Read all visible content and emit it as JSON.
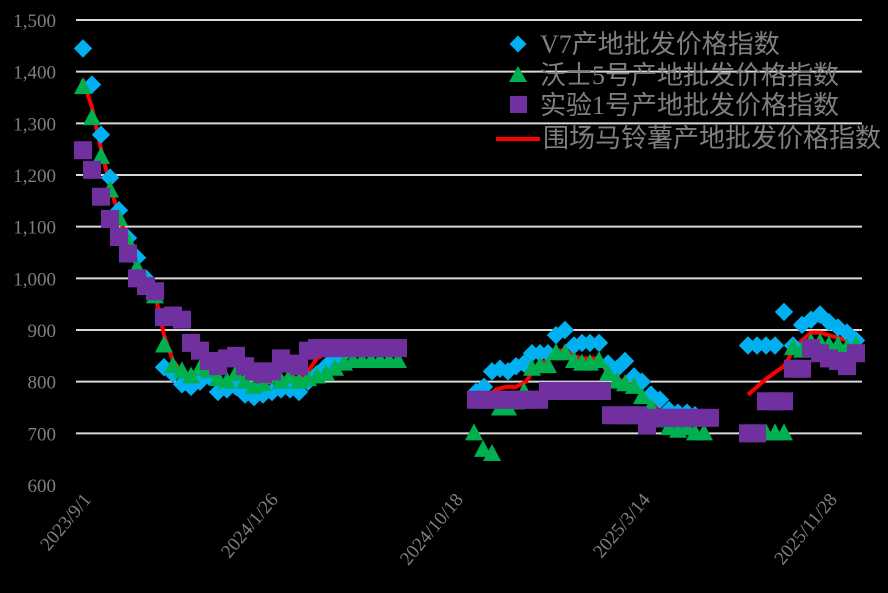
{
  "chart_data": {
    "type": "scatter",
    "title": "",
    "xlabel": "",
    "ylabel": "",
    "ylim": [
      600,
      1500
    ],
    "y_ticks": [
      "1,500",
      "1,400",
      "1,300",
      "1,200",
      "1,100",
      "1,000",
      "900",
      "800",
      "700",
      "600"
    ],
    "x_tick_labels": [
      "2023/9/1",
      "2024/1/26",
      "2024/10/18",
      "2025/3/14",
      "2025/11/28"
    ],
    "grid": true,
    "legend_position": "top-right",
    "background": "#000000",
    "series": [
      {
        "name": "V7产地批发价格指数",
        "marker": "diamond",
        "color": "#00b0f0",
        "points": [
          [
            83,
            1445
          ],
          [
            92,
            1375
          ],
          [
            101,
            1278
          ],
          [
            110,
            1195
          ],
          [
            119,
            1132
          ],
          [
            128,
            1078
          ],
          [
            137,
            1040
          ],
          [
            146,
            1000
          ],
          [
            155,
            970
          ],
          [
            164,
            828
          ],
          [
            173,
            815
          ],
          [
            182,
            795
          ],
          [
            191,
            790
          ],
          [
            200,
            800
          ],
          [
            209,
            810
          ],
          [
            218,
            780
          ],
          [
            227,
            785
          ],
          [
            236,
            790
          ],
          [
            245,
            775
          ],
          [
            254,
            770
          ],
          [
            263,
            775
          ],
          [
            272,
            780
          ],
          [
            281,
            785
          ],
          [
            290,
            785
          ],
          [
            299,
            780
          ],
          [
            308,
            800
          ],
          [
            317,
            815
          ],
          [
            326,
            830
          ],
          [
            335,
            845
          ],
          [
            344,
            855
          ],
          [
            353,
            860
          ],
          [
            362,
            865
          ],
          [
            371,
            865
          ],
          [
            380,
            865
          ],
          [
            389,
            865
          ],
          [
            398,
            865
          ],
          [
            476,
            780
          ],
          [
            484,
            790
          ],
          [
            492,
            820
          ],
          [
            500,
            825
          ],
          [
            508,
            820
          ],
          [
            516,
            830
          ],
          [
            524,
            835
          ],
          [
            532,
            855
          ],
          [
            540,
            855
          ],
          [
            548,
            855
          ],
          [
            556,
            890
          ],
          [
            565,
            900
          ],
          [
            574,
            870
          ],
          [
            582,
            875
          ],
          [
            590,
            875
          ],
          [
            599,
            875
          ],
          [
            608,
            835
          ],
          [
            617,
            825
          ],
          [
            625,
            840
          ],
          [
            634,
            810
          ],
          [
            642,
            800
          ],
          [
            651,
            775
          ],
          [
            660,
            765
          ],
          [
            669,
            745
          ],
          [
            678,
            740
          ],
          [
            687,
            740
          ],
          [
            695,
            735
          ],
          [
            704,
            730
          ],
          [
            748,
            870
          ],
          [
            757,
            870
          ],
          [
            766,
            870
          ],
          [
            775,
            870
          ],
          [
            784,
            935
          ],
          [
            793,
            870
          ],
          [
            802,
            910
          ],
          [
            811,
            920
          ],
          [
            820,
            930
          ],
          [
            829,
            915
          ],
          [
            838,
            905
          ],
          [
            847,
            895
          ],
          [
            856,
            880
          ]
        ]
      },
      {
        "name": "沃士5号产地批发价格指数",
        "marker": "triangle",
        "color": "#00b050",
        "points": [
          [
            83,
            1370
          ],
          [
            92,
            1310
          ],
          [
            101,
            1235
          ],
          [
            110,
            1170
          ],
          [
            119,
            1115
          ],
          [
            128,
            1070
          ],
          [
            137,
            1020
          ],
          [
            146,
            990
          ],
          [
            155,
            965
          ],
          [
            164,
            870
          ],
          [
            173,
            830
          ],
          [
            182,
            820
          ],
          [
            191,
            810
          ],
          [
            200,
            825
          ],
          [
            209,
            820
          ],
          [
            218,
            805
          ],
          [
            227,
            800
          ],
          [
            236,
            815
          ],
          [
            245,
            800
          ],
          [
            254,
            790
          ],
          [
            263,
            795
          ],
          [
            272,
            810
          ],
          [
            281,
            800
          ],
          [
            290,
            810
          ],
          [
            299,
            800
          ],
          [
            308,
            805
          ],
          [
            317,
            810
          ],
          [
            326,
            815
          ],
          [
            335,
            825
          ],
          [
            344,
            835
          ],
          [
            353,
            840
          ],
          [
            362,
            840
          ],
          [
            371,
            840
          ],
          [
            380,
            840
          ],
          [
            389,
            840
          ],
          [
            398,
            840
          ],
          [
            474,
            700
          ],
          [
            483,
            668
          ],
          [
            492,
            660
          ],
          [
            500,
            748
          ],
          [
            508,
            748
          ],
          [
            516,
            760
          ],
          [
            524,
            780
          ],
          [
            532,
            825
          ],
          [
            540,
            830
          ],
          [
            548,
            830
          ],
          [
            556,
            855
          ],
          [
            565,
            855
          ],
          [
            574,
            840
          ],
          [
            582,
            835
          ],
          [
            590,
            835
          ],
          [
            599,
            840
          ],
          [
            608,
            815
          ],
          [
            617,
            800
          ],
          [
            625,
            795
          ],
          [
            634,
            790
          ],
          [
            642,
            770
          ],
          [
            651,
            750
          ],
          [
            660,
            725
          ],
          [
            669,
            710
          ],
          [
            678,
            705
          ],
          [
            687,
            710
          ],
          [
            695,
            700
          ],
          [
            704,
            700
          ],
          [
            748,
            700
          ],
          [
            757,
            700
          ],
          [
            766,
            700
          ],
          [
            775,
            700
          ],
          [
            784,
            700
          ],
          [
            793,
            865
          ],
          [
            802,
            860
          ],
          [
            811,
            875
          ],
          [
            820,
            875
          ],
          [
            829,
            870
          ],
          [
            838,
            870
          ],
          [
            847,
            865
          ],
          [
            856,
            870
          ]
        ]
      },
      {
        "name": "实验1号产地批发价格指数",
        "marker": "square",
        "color": "#7030a0",
        "points": [
          [
            83,
            1248
          ],
          [
            92,
            1210
          ],
          [
            101,
            1158
          ],
          [
            110,
            1115
          ],
          [
            119,
            1080
          ],
          [
            128,
            1048
          ],
          [
            137,
            1000
          ],
          [
            146,
            985
          ],
          [
            155,
            975
          ],
          [
            164,
            925
          ],
          [
            173,
            928
          ],
          [
            182,
            920
          ],
          [
            191,
            875
          ],
          [
            200,
            860
          ],
          [
            209,
            840
          ],
          [
            218,
            830
          ],
          [
            227,
            845
          ],
          [
            236,
            850
          ],
          [
            245,
            830
          ],
          [
            254,
            820
          ],
          [
            263,
            815
          ],
          [
            272,
            820
          ],
          [
            281,
            845
          ],
          [
            290,
            835
          ],
          [
            299,
            830
          ],
          [
            308,
            860
          ],
          [
            317,
            865
          ],
          [
            326,
            865
          ],
          [
            335,
            865
          ],
          [
            344,
            865
          ],
          [
            353,
            865
          ],
          [
            362,
            865
          ],
          [
            371,
            865
          ],
          [
            380,
            865
          ],
          [
            389,
            865
          ],
          [
            398,
            865
          ],
          [
            476,
            765
          ],
          [
            485,
            765
          ],
          [
            494,
            765
          ],
          [
            503,
            765
          ],
          [
            512,
            765
          ],
          [
            521,
            765
          ],
          [
            530,
            765
          ],
          [
            539,
            765
          ],
          [
            548,
            782
          ],
          [
            557,
            782
          ],
          [
            566,
            782
          ],
          [
            575,
            782
          ],
          [
            584,
            782
          ],
          [
            593,
            782
          ],
          [
            602,
            782
          ],
          [
            611,
            735
          ],
          [
            620,
            735
          ],
          [
            629,
            735
          ],
          [
            638,
            735
          ],
          [
            647,
            715
          ],
          [
            656,
            730
          ],
          [
            665,
            730
          ],
          [
            674,
            730
          ],
          [
            683,
            730
          ],
          [
            692,
            730
          ],
          [
            701,
            730
          ],
          [
            710,
            730
          ],
          [
            748,
            700
          ],
          [
            757,
            700
          ],
          [
            766,
            762
          ],
          [
            775,
            762
          ],
          [
            784,
            762
          ],
          [
            793,
            825
          ],
          [
            802,
            825
          ],
          [
            811,
            865
          ],
          [
            820,
            855
          ],
          [
            829,
            845
          ],
          [
            838,
            840
          ],
          [
            847,
            830
          ],
          [
            856,
            855
          ]
        ]
      },
      {
        "name": "围场马铃薯产地批发价格指数",
        "marker": "line",
        "color": "#ff0000",
        "points": [
          [
            83,
            1385
          ],
          [
            92,
            1330
          ],
          [
            101,
            1250
          ],
          [
            110,
            1180
          ],
          [
            119,
            1120
          ],
          [
            128,
            1070
          ],
          [
            137,
            1030
          ],
          [
            146,
            995
          ],
          [
            155,
            970
          ],
          [
            164,
            890
          ],
          [
            173,
            840
          ],
          [
            182,
            820
          ],
          [
            191,
            810
          ],
          [
            200,
            815
          ],
          [
            209,
            815
          ],
          [
            218,
            800
          ],
          [
            227,
            800
          ],
          [
            236,
            810
          ],
          [
            245,
            800
          ],
          [
            254,
            790
          ],
          [
            263,
            795
          ],
          [
            272,
            800
          ],
          [
            281,
            805
          ],
          [
            290,
            810
          ],
          [
            299,
            805
          ],
          [
            308,
            820
          ],
          [
            317,
            845
          ],
          [
            326,
            855
          ],
          [
            335,
            865
          ],
          [
            344,
            865
          ],
          [
            353,
            865
          ],
          [
            362,
            865
          ],
          [
            371,
            865
          ],
          [
            380,
            865
          ],
          [
            389,
            865
          ],
          [
            398,
            865
          ],
          [
            476,
            770
          ],
          [
            486,
            770
          ],
          [
            496,
            785
          ],
          [
            506,
            790
          ],
          [
            516,
            790
          ],
          [
            526,
            800
          ],
          [
            536,
            830
          ],
          [
            546,
            840
          ],
          [
            556,
            860
          ],
          [
            565,
            860
          ],
          [
            574,
            850
          ],
          [
            582,
            845
          ],
          [
            590,
            845
          ],
          [
            599,
            845
          ],
          [
            608,
            815
          ],
          [
            617,
            805
          ],
          [
            625,
            800
          ],
          [
            634,
            790
          ],
          [
            642,
            775
          ],
          [
            651,
            760
          ],
          [
            660,
            750
          ],
          [
            748,
            775
          ],
          [
            757,
            790
          ],
          [
            766,
            805
          ],
          [
            775,
            818
          ],
          [
            784,
            830
          ],
          [
            793,
            860
          ],
          [
            802,
            880
          ],
          [
            811,
            895
          ],
          [
            820,
            895
          ],
          [
            829,
            890
          ],
          [
            838,
            885
          ],
          [
            847,
            880
          ],
          [
            856,
            870
          ]
        ]
      }
    ]
  },
  "legend": {
    "items": [
      {
        "label": "V7产地批发价格指数",
        "marker": "diamond",
        "color": "#00b0f0"
      },
      {
        "label": "沃士5号产地批发价格指数",
        "marker": "triangle",
        "color": "#00b050"
      },
      {
        "label": "实验1号产地批发价格指数",
        "marker": "square",
        "color": "#7030a0"
      },
      {
        "label": "围场马铃薯产地批发价格指数",
        "marker": "line",
        "color": "#ff0000"
      }
    ]
  }
}
